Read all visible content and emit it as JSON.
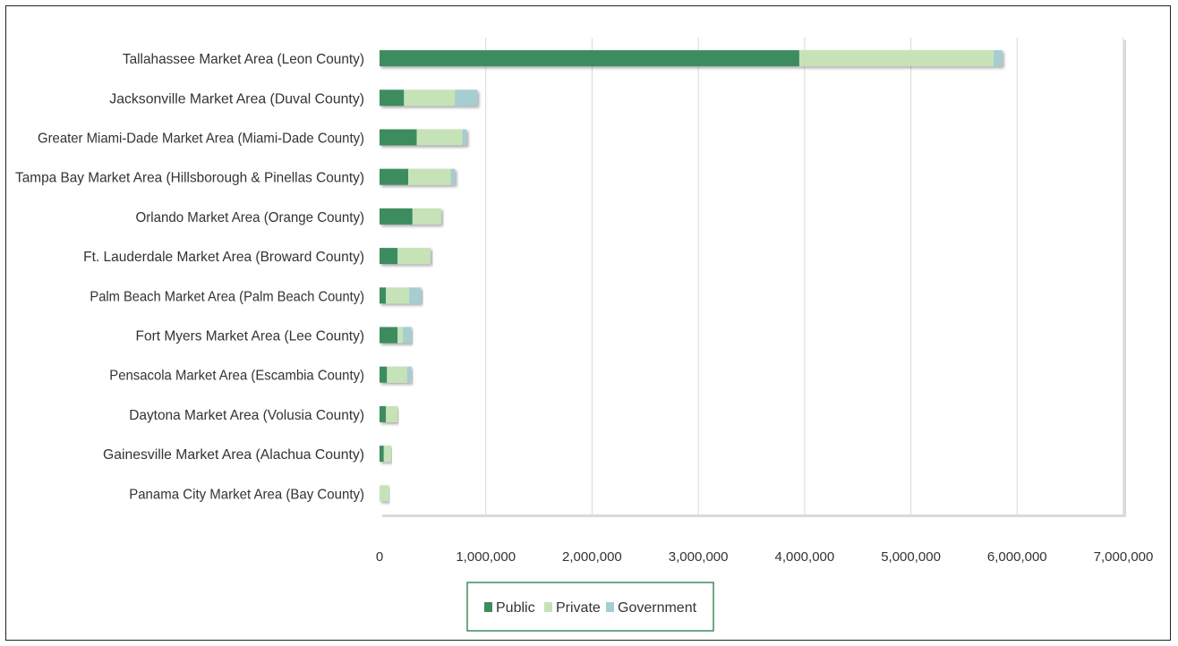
{
  "chart_data": {
    "type": "bar",
    "orientation": "horizontal",
    "stacked": true,
    "categories": [
      "Tallahassee Market Area (Leon County)",
      "Jacksonville Market Area (Duval County)",
      "Greater Miami-Dade Market Area (Miami-Dade County)",
      "Tampa Bay Market Area (Hillsborough & Pinellas County)",
      "Orlando Market Area (Orange County)",
      "Ft. Lauderdale Market Area (Broward County)",
      "Palm Beach Market Area (Palm Beach County)",
      "Fort Myers Market Area (Lee County)",
      "Pensacola Market Area (Escambia County)",
      "Daytona Market Area (Volusia County)",
      "Gainesville Market Area (Alachua County)",
      "Panama City Market Area (Bay County)"
    ],
    "series": [
      {
        "name": "Public",
        "color": "#3d8c5f",
        "values": [
          3950000,
          230000,
          350000,
          270000,
          310000,
          170000,
          60000,
          170000,
          70000,
          60000,
          40000,
          0
        ]
      },
      {
        "name": "Private",
        "color": "#c6e3b8",
        "values": [
          1830000,
          480000,
          430000,
          400000,
          270000,
          310000,
          220000,
          50000,
          190000,
          110000,
          70000,
          90000
        ]
      },
      {
        "name": "Government",
        "color": "#a6cdd0",
        "values": [
          80000,
          210000,
          40000,
          40000,
          0,
          0,
          110000,
          80000,
          40000,
          0,
          0,
          0
        ]
      }
    ],
    "xlim": [
      0,
      7000000
    ],
    "x_ticks": [
      "0",
      "1,000,000",
      "2,000,000",
      "3,000,000",
      "4,000,000",
      "5,000,000",
      "6,000,000",
      "7,000,000"
    ],
    "x_tick_values": [
      0,
      1000000,
      2000000,
      3000000,
      4000000,
      5000000,
      6000000,
      7000000
    ],
    "grid": "vertical",
    "legend_position": "bottom",
    "title": "",
    "xlabel": "",
    "ylabel": ""
  }
}
